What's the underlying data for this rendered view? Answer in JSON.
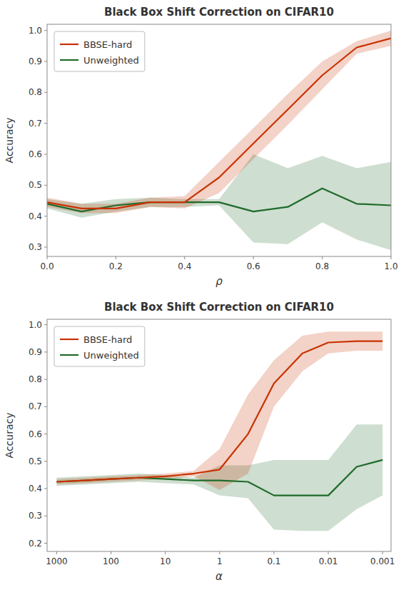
{
  "chart_data": [
    {
      "type": "line",
      "title": "Black Box Shift Correction on CIFAR10",
      "xlabel": "ρ",
      "ylabel": "Accuracy",
      "x": [
        0.0,
        0.1,
        0.2,
        0.3,
        0.4,
        0.5,
        0.6,
        0.7,
        0.8,
        0.9,
        1.0
      ],
      "series": [
        {
          "name": "Unweighted",
          "color": "#1f6b2a",
          "values": [
            0.44,
            0.415,
            0.435,
            0.445,
            0.445,
            0.445,
            0.415,
            0.43,
            0.49,
            0.44,
            0.435
          ],
          "upper": [
            0.455,
            0.44,
            0.455,
            0.46,
            0.455,
            0.455,
            0.6,
            0.555,
            0.595,
            0.555,
            0.575
          ],
          "lower": [
            0.425,
            0.395,
            0.415,
            0.43,
            0.43,
            0.435,
            0.315,
            0.31,
            0.38,
            0.325,
            0.29
          ]
        },
        {
          "name": "BBSE-hard",
          "color": "#c83200",
          "values": [
            0.445,
            0.425,
            0.425,
            0.445,
            0.445,
            0.525,
            0.635,
            0.745,
            0.855,
            0.945,
            0.975
          ],
          "upper": [
            0.46,
            0.44,
            0.44,
            0.46,
            0.465,
            0.575,
            0.685,
            0.795,
            0.9,
            0.965,
            1.0
          ],
          "lower": [
            0.43,
            0.41,
            0.41,
            0.43,
            0.425,
            0.475,
            0.585,
            0.695,
            0.81,
            0.925,
            0.95
          ]
        }
      ],
      "xlim": [
        0.0,
        1.0
      ],
      "xticks": [
        {
          "value": 0.0,
          "label": "0.0"
        },
        0.2,
        0.4,
        0.6,
        0.8,
        {
          "value": 1.0,
          "label": "1.0"
        }
      ],
      "ylim": [
        0.27,
        1.02
      ],
      "yticks": [
        0.3,
        0.4,
        0.5,
        0.6,
        0.7,
        0.8,
        0.9,
        {
          "value": 1.0,
          "label": "1.0"
        }
      ],
      "grid": false,
      "legend": "upper left"
    },
    {
      "type": "line",
      "title": "Black Box Shift Correction on CIFAR10",
      "xlabel": "α",
      "ylabel": "Accuracy",
      "x": [
        1000,
        300,
        100,
        30,
        10,
        3,
        1,
        0.3,
        0.1,
        0.03,
        0.01,
        0.003,
        0.001
      ],
      "series": [
        {
          "name": "Unweighted",
          "color": "#1f6b2a",
          "values": [
            0.425,
            0.43,
            0.435,
            0.44,
            0.435,
            0.43,
            0.43,
            0.425,
            0.375,
            0.375,
            0.375,
            0.48,
            0.505
          ],
          "upper": [
            0.44,
            0.445,
            0.45,
            0.455,
            0.45,
            0.44,
            0.485,
            0.485,
            0.505,
            0.505,
            0.505,
            0.635,
            0.635
          ],
          "lower": [
            0.41,
            0.415,
            0.42,
            0.425,
            0.42,
            0.415,
            0.375,
            0.365,
            0.25,
            0.245,
            0.245,
            0.325,
            0.375
          ]
        },
        {
          "name": "BBSE-hard",
          "color": "#c83200",
          "values": [
            0.425,
            0.43,
            0.435,
            0.44,
            0.445,
            0.455,
            0.47,
            0.6,
            0.785,
            0.895,
            0.935,
            0.94,
            0.94
          ],
          "upper": [
            0.435,
            0.44,
            0.445,
            0.45,
            0.455,
            0.465,
            0.545,
            0.745,
            0.87,
            0.96,
            0.975,
            0.975,
            0.975
          ],
          "lower": [
            0.415,
            0.42,
            0.425,
            0.43,
            0.435,
            0.445,
            0.395,
            0.455,
            0.7,
            0.83,
            0.895,
            0.905,
            0.905
          ]
        }
      ],
      "log": "x",
      "xlim": [
        1500,
        0.0007
      ],
      "xticks": [
        1000,
        100,
        10,
        1,
        0.1,
        0.01,
        0.001
      ],
      "ylim": [
        0.17,
        1.02
      ],
      "yticks": [
        0.2,
        0.3,
        0.4,
        0.5,
        0.6,
        0.7,
        0.8,
        0.9,
        {
          "value": 1.0,
          "label": "1.0"
        }
      ],
      "grid": false,
      "legend": "upper left"
    }
  ]
}
